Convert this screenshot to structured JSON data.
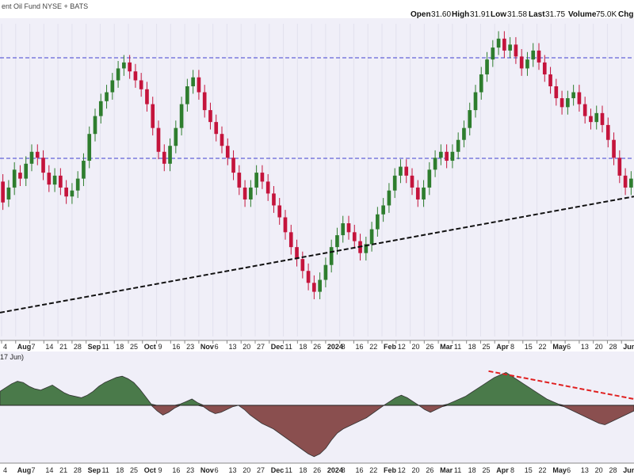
{
  "header": {
    "title": "ent Oil Fund NYSE + BATS",
    "quote": [
      {
        "label": "Open",
        "value": "31.60"
      },
      {
        "label": "High",
        "value": "31.91"
      },
      {
        "label": "Low",
        "value": "31.58"
      },
      {
        "label": "Last",
        "value": "31.75"
      },
      {
        "label": "Volume",
        "value": "75.0K"
      },
      {
        "label": "Chg",
        "value": ""
      }
    ],
    "axis_stub": "5"
  },
  "indicator": {
    "label": "17 Jun)"
  },
  "colors": {
    "up": "#2e7d2e",
    "down": "#c4143c",
    "resistance_line": "#4040d0",
    "trendline": "#111111",
    "osc_positive": "#4a7a4a",
    "osc_negative": "#8a4f4f",
    "divergence_line": "#e02020",
    "panel_bg": "#f0eff8"
  },
  "chart_data": {
    "type": "candlestick",
    "period": "daily",
    "x_tick_labels": [
      "4",
      "Aug",
      "7",
      "14",
      "21",
      "28",
      "Sep",
      "11",
      "18",
      "25",
      "Oct",
      "9",
      "16",
      "23",
      "Nov",
      "6",
      "13",
      "20",
      "27",
      "Dec",
      "11",
      "18",
      "26",
      "2024",
      "8",
      "16",
      "22",
      "Feb",
      "12",
      "20",
      "26",
      "Mar",
      "11",
      "18",
      "25",
      "Apr",
      "8",
      "15",
      "22",
      "May",
      "6",
      "13",
      "20",
      "28",
      "Jun"
    ],
    "resistance_levels": [
      "upper",
      "lower"
    ],
    "price_panel": {
      "candles": [
        {
          "o": 52,
          "c": 45
        },
        {
          "o": 46,
          "c": 50
        },
        {
          "o": 50,
          "c": 56
        },
        {
          "o": 55,
          "c": 53
        },
        {
          "o": 53,
          "c": 58
        },
        {
          "o": 58,
          "c": 62
        },
        {
          "o": 62,
          "c": 60
        },
        {
          "o": 60,
          "c": 55
        },
        {
          "o": 55,
          "c": 51
        },
        {
          "o": 51,
          "c": 54
        },
        {
          "o": 54,
          "c": 50
        },
        {
          "o": 50,
          "c": 47
        },
        {
          "o": 47,
          "c": 49
        },
        {
          "o": 49,
          "c": 53
        },
        {
          "o": 53,
          "c": 59
        },
        {
          "o": 59,
          "c": 68
        },
        {
          "o": 68,
          "c": 74
        },
        {
          "o": 74,
          "c": 79
        },
        {
          "o": 79,
          "c": 82
        },
        {
          "o": 82,
          "c": 86
        },
        {
          "o": 86,
          "c": 90
        },
        {
          "o": 90,
          "c": 92
        },
        {
          "o": 92,
          "c": 89
        },
        {
          "o": 89,
          "c": 86
        },
        {
          "o": 86,
          "c": 83
        },
        {
          "o": 83,
          "c": 78
        },
        {
          "o": 78,
          "c": 70
        },
        {
          "o": 70,
          "c": 62
        },
        {
          "o": 62,
          "c": 58
        },
        {
          "o": 58,
          "c": 64
        },
        {
          "o": 64,
          "c": 70
        },
        {
          "o": 70,
          "c": 78
        },
        {
          "o": 78,
          "c": 84
        },
        {
          "o": 84,
          "c": 87
        },
        {
          "o": 87,
          "c": 82
        },
        {
          "o": 82,
          "c": 76
        },
        {
          "o": 76,
          "c": 72
        },
        {
          "o": 72,
          "c": 68
        },
        {
          "o": 68,
          "c": 64
        },
        {
          "o": 64,
          "c": 60
        },
        {
          "o": 60,
          "c": 55
        },
        {
          "o": 55,
          "c": 50
        },
        {
          "o": 50,
          "c": 46
        },
        {
          "o": 46,
          "c": 50
        },
        {
          "o": 50,
          "c": 55
        },
        {
          "o": 55,
          "c": 52
        },
        {
          "o": 52,
          "c": 48
        },
        {
          "o": 48,
          "c": 44
        },
        {
          "o": 44,
          "c": 40
        },
        {
          "o": 40,
          "c": 35
        },
        {
          "o": 35,
          "c": 30
        },
        {
          "o": 30,
          "c": 26
        },
        {
          "o": 26,
          "c": 22
        },
        {
          "o": 22,
          "c": 18
        },
        {
          "o": 18,
          "c": 15
        },
        {
          "o": 15,
          "c": 19
        },
        {
          "o": 19,
          "c": 24
        },
        {
          "o": 24,
          "c": 30
        },
        {
          "o": 30,
          "c": 34
        },
        {
          "o": 34,
          "c": 38
        },
        {
          "o": 38,
          "c": 35
        },
        {
          "o": 35,
          "c": 32
        },
        {
          "o": 32,
          "c": 28
        },
        {
          "o": 28,
          "c": 31
        },
        {
          "o": 31,
          "c": 36
        },
        {
          "o": 36,
          "c": 41
        },
        {
          "o": 41,
          "c": 44
        },
        {
          "o": 44,
          "c": 49
        },
        {
          "o": 49,
          "c": 54
        },
        {
          "o": 54,
          "c": 57
        },
        {
          "o": 57,
          "c": 54
        },
        {
          "o": 54,
          "c": 50
        },
        {
          "o": 50,
          "c": 46
        },
        {
          "o": 46,
          "c": 50
        },
        {
          "o": 50,
          "c": 56
        },
        {
          "o": 56,
          "c": 60
        },
        {
          "o": 60,
          "c": 62
        },
        {
          "o": 62,
          "c": 59
        },
        {
          "o": 59,
          "c": 62
        },
        {
          "o": 62,
          "c": 66
        },
        {
          "o": 66,
          "c": 70
        },
        {
          "o": 70,
          "c": 76
        },
        {
          "o": 76,
          "c": 82
        },
        {
          "o": 82,
          "c": 88
        },
        {
          "o": 88,
          "c": 93
        },
        {
          "o": 93,
          "c": 97
        },
        {
          "o": 97,
          "c": 100
        },
        {
          "o": 100,
          "c": 96
        },
        {
          "o": 96,
          "c": 98
        },
        {
          "o": 98,
          "c": 94
        },
        {
          "o": 94,
          "c": 90
        },
        {
          "o": 90,
          "c": 93
        },
        {
          "o": 93,
          "c": 96
        },
        {
          "o": 96,
          "c": 92
        },
        {
          "o": 92,
          "c": 88
        },
        {
          "o": 88,
          "c": 84
        },
        {
          "o": 84,
          "c": 80
        },
        {
          "o": 80,
          "c": 77
        },
        {
          "o": 77,
          "c": 80
        },
        {
          "o": 80,
          "c": 82
        },
        {
          "o": 82,
          "c": 78
        },
        {
          "o": 78,
          "c": 74
        },
        {
          "o": 74,
          "c": 72
        },
        {
          "o": 72,
          "c": 75
        },
        {
          "o": 75,
          "c": 71
        },
        {
          "o": 71,
          "c": 66
        },
        {
          "o": 66,
          "c": 60
        },
        {
          "o": 60,
          "c": 54
        },
        {
          "o": 54,
          "c": 50
        },
        {
          "o": 50,
          "c": 53
        }
      ],
      "trendline": {
        "from": {
          "bar": 0,
          "value": 8
        },
        "to": {
          "bar": 109,
          "value": 47
        }
      }
    },
    "oscillator_panel": {
      "zero_line": 0,
      "values": [
        22,
        28,
        34,
        38,
        36,
        30,
        26,
        24,
        28,
        32,
        26,
        20,
        16,
        14,
        12,
        16,
        22,
        30,
        36,
        40,
        44,
        46,
        42,
        36,
        26,
        14,
        2,
        -8,
        -14,
        -10,
        -4,
        2,
        6,
        10,
        4,
        -2,
        -8,
        -12,
        -10,
        -6,
        -2,
        0,
        -6,
        -14,
        -20,
        -26,
        -30,
        -34,
        -40,
        -46,
        -52,
        -58,
        -64,
        -70,
        -74,
        -70,
        -62,
        -50,
        -40,
        -34,
        -30,
        -26,
        -22,
        -18,
        -12,
        -6,
        0,
        6,
        12,
        16,
        12,
        6,
        0,
        -6,
        -10,
        -6,
        -2,
        2,
        6,
        10,
        14,
        20,
        26,
        32,
        38,
        44,
        48,
        52,
        46,
        40,
        34,
        28,
        22,
        16,
        10,
        6,
        2,
        -2,
        -6,
        -10,
        -14,
        -18,
        -22,
        -26,
        -28,
        -24,
        -20,
        -16,
        -12,
        -8
      ],
      "divergence_line": {
        "from": {
          "bar": 84,
          "value": 54
        },
        "to": {
          "bar": 109,
          "value": 10
        }
      }
    }
  }
}
